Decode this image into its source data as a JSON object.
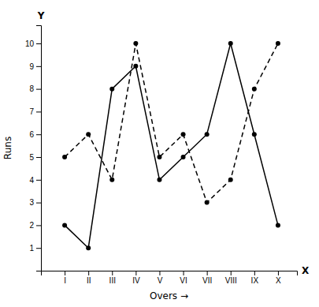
{
  "chart_data": {
    "type": "line",
    "x": [
      1,
      2,
      3,
      4,
      5,
      6,
      7,
      8,
      9,
      10
    ],
    "series": [
      {
        "color": "#000000",
        "line_style": "solid",
        "marker": "circle",
        "values": [
          2,
          1,
          8,
          9,
          4,
          5,
          6,
          10,
          6,
          2
        ]
      },
      {
        "color": "#000000",
        "line_style": "dashed",
        "marker": "circle",
        "values": [
          5,
          6,
          4,
          10,
          5,
          6,
          3,
          4,
          8,
          10
        ]
      }
    ],
    "xlim": [
      0,
      10.8
    ],
    "ylim": [
      0,
      10.8
    ],
    "xticks": [
      {
        "value": 1,
        "label": "I"
      },
      {
        "value": 2,
        "label": "II"
      },
      {
        "value": 3,
        "label": "III"
      },
      {
        "value": 4,
        "label": "IV"
      },
      {
        "value": 5,
        "label": "V"
      },
      {
        "value": 6,
        "label": "VI"
      },
      {
        "value": 7,
        "label": "VII"
      },
      {
        "value": 8,
        "label": "VIII"
      },
      {
        "value": 9,
        "label": "IX"
      },
      {
        "value": 10,
        "label": "X"
      }
    ],
    "yticks": [
      1,
      2,
      3,
      4,
      5,
      6,
      7,
      8,
      9,
      10
    ],
    "x_label": "Overs →",
    "y_label": "Runs",
    "annotations": [
      "X",
      "Y"
    ],
    "grid": false
  }
}
